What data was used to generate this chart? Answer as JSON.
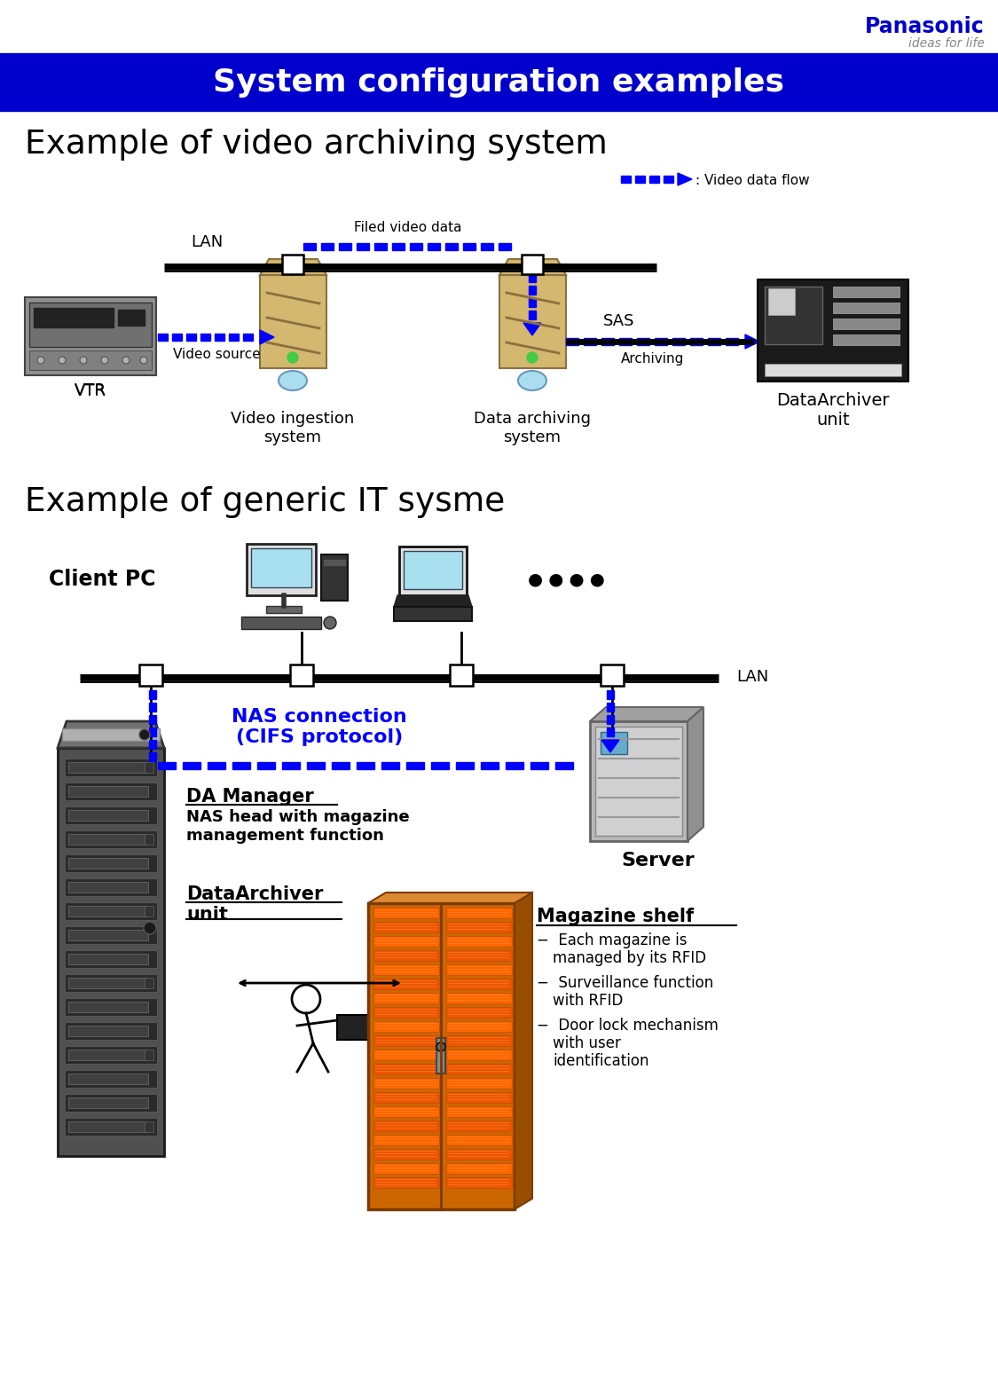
{
  "title": "System configuration examples",
  "title_bg_color": "#0000CC",
  "title_text_color": "#FFFFFF",
  "bg_color": "#FFFFFF",
  "panasonic_text": "Panasonic",
  "panasonic_subtext": "ideas for life",
  "panasonic_color": "#0000CC",
  "panasonic_subcolor": "#888888",
  "section1_title": "Example of video archiving system",
  "section2_title": "Example of generic IT sysme",
  "lan_label": "LAN",
  "sas_label": "SAS",
  "filed_video_label": "Filed video data",
  "video_data_flow_label": ": Video data flow",
  "vtr_label": "VTR",
  "video_source_label": "Video source",
  "video_ingestion_label": "Video ingestion\nsystem",
  "data_archiving_label": "Data archiving\nsystem",
  "archiving_label": "Archiving",
  "dataarchiver_label": "DataArchiver\nunit",
  "client_pc_label": "Client PC",
  "nas_connection_label": "NAS connection\n(CIFS protocol)",
  "da_manager_label": "DA Manager",
  "nas_head_label": "NAS head with magazine\nmanagement function",
  "dataarchiver2_label": "DataArchiver\nunit",
  "server_label": "Server",
  "lan2_label": "LAN",
  "magazine_shelf_label": "Magazine shelf",
  "bullet1": "Each magazine is\nmanaged by its RFID",
  "bullet2": "Surveillance function\nwith RFID",
  "bullet3": "Door lock mechanism\nwith user\nidentification",
  "blue_color": "#0000FF",
  "dark_blue": "#0000CC",
  "black": "#000000",
  "gray": "#888888",
  "orange_brown": "#CC6600",
  "dots_label": "••••"
}
